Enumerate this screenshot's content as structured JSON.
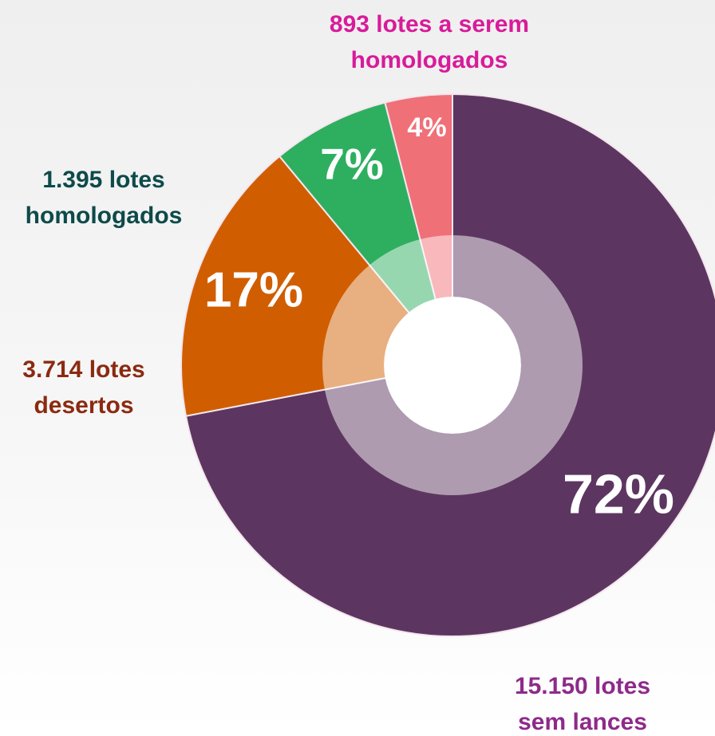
{
  "chart_data": {
    "type": "donut",
    "categories": [
      "15.150 lotes sem lances",
      "3.714 lotes desertos",
      "1.395 lotes homologados",
      "893 lotes a serem homologados"
    ],
    "values": [
      72,
      17,
      7,
      4
    ],
    "value_labels": [
      "72%",
      "17%",
      "7%",
      "4%"
    ],
    "colors": [
      "#5c3660",
      "#d05e00",
      "#2eaf60",
      "#f07078"
    ],
    "label_colors": [
      "#8e2a8a",
      "#8b2a10",
      "#0e4a4a",
      "#d81b9a"
    ]
  }
}
